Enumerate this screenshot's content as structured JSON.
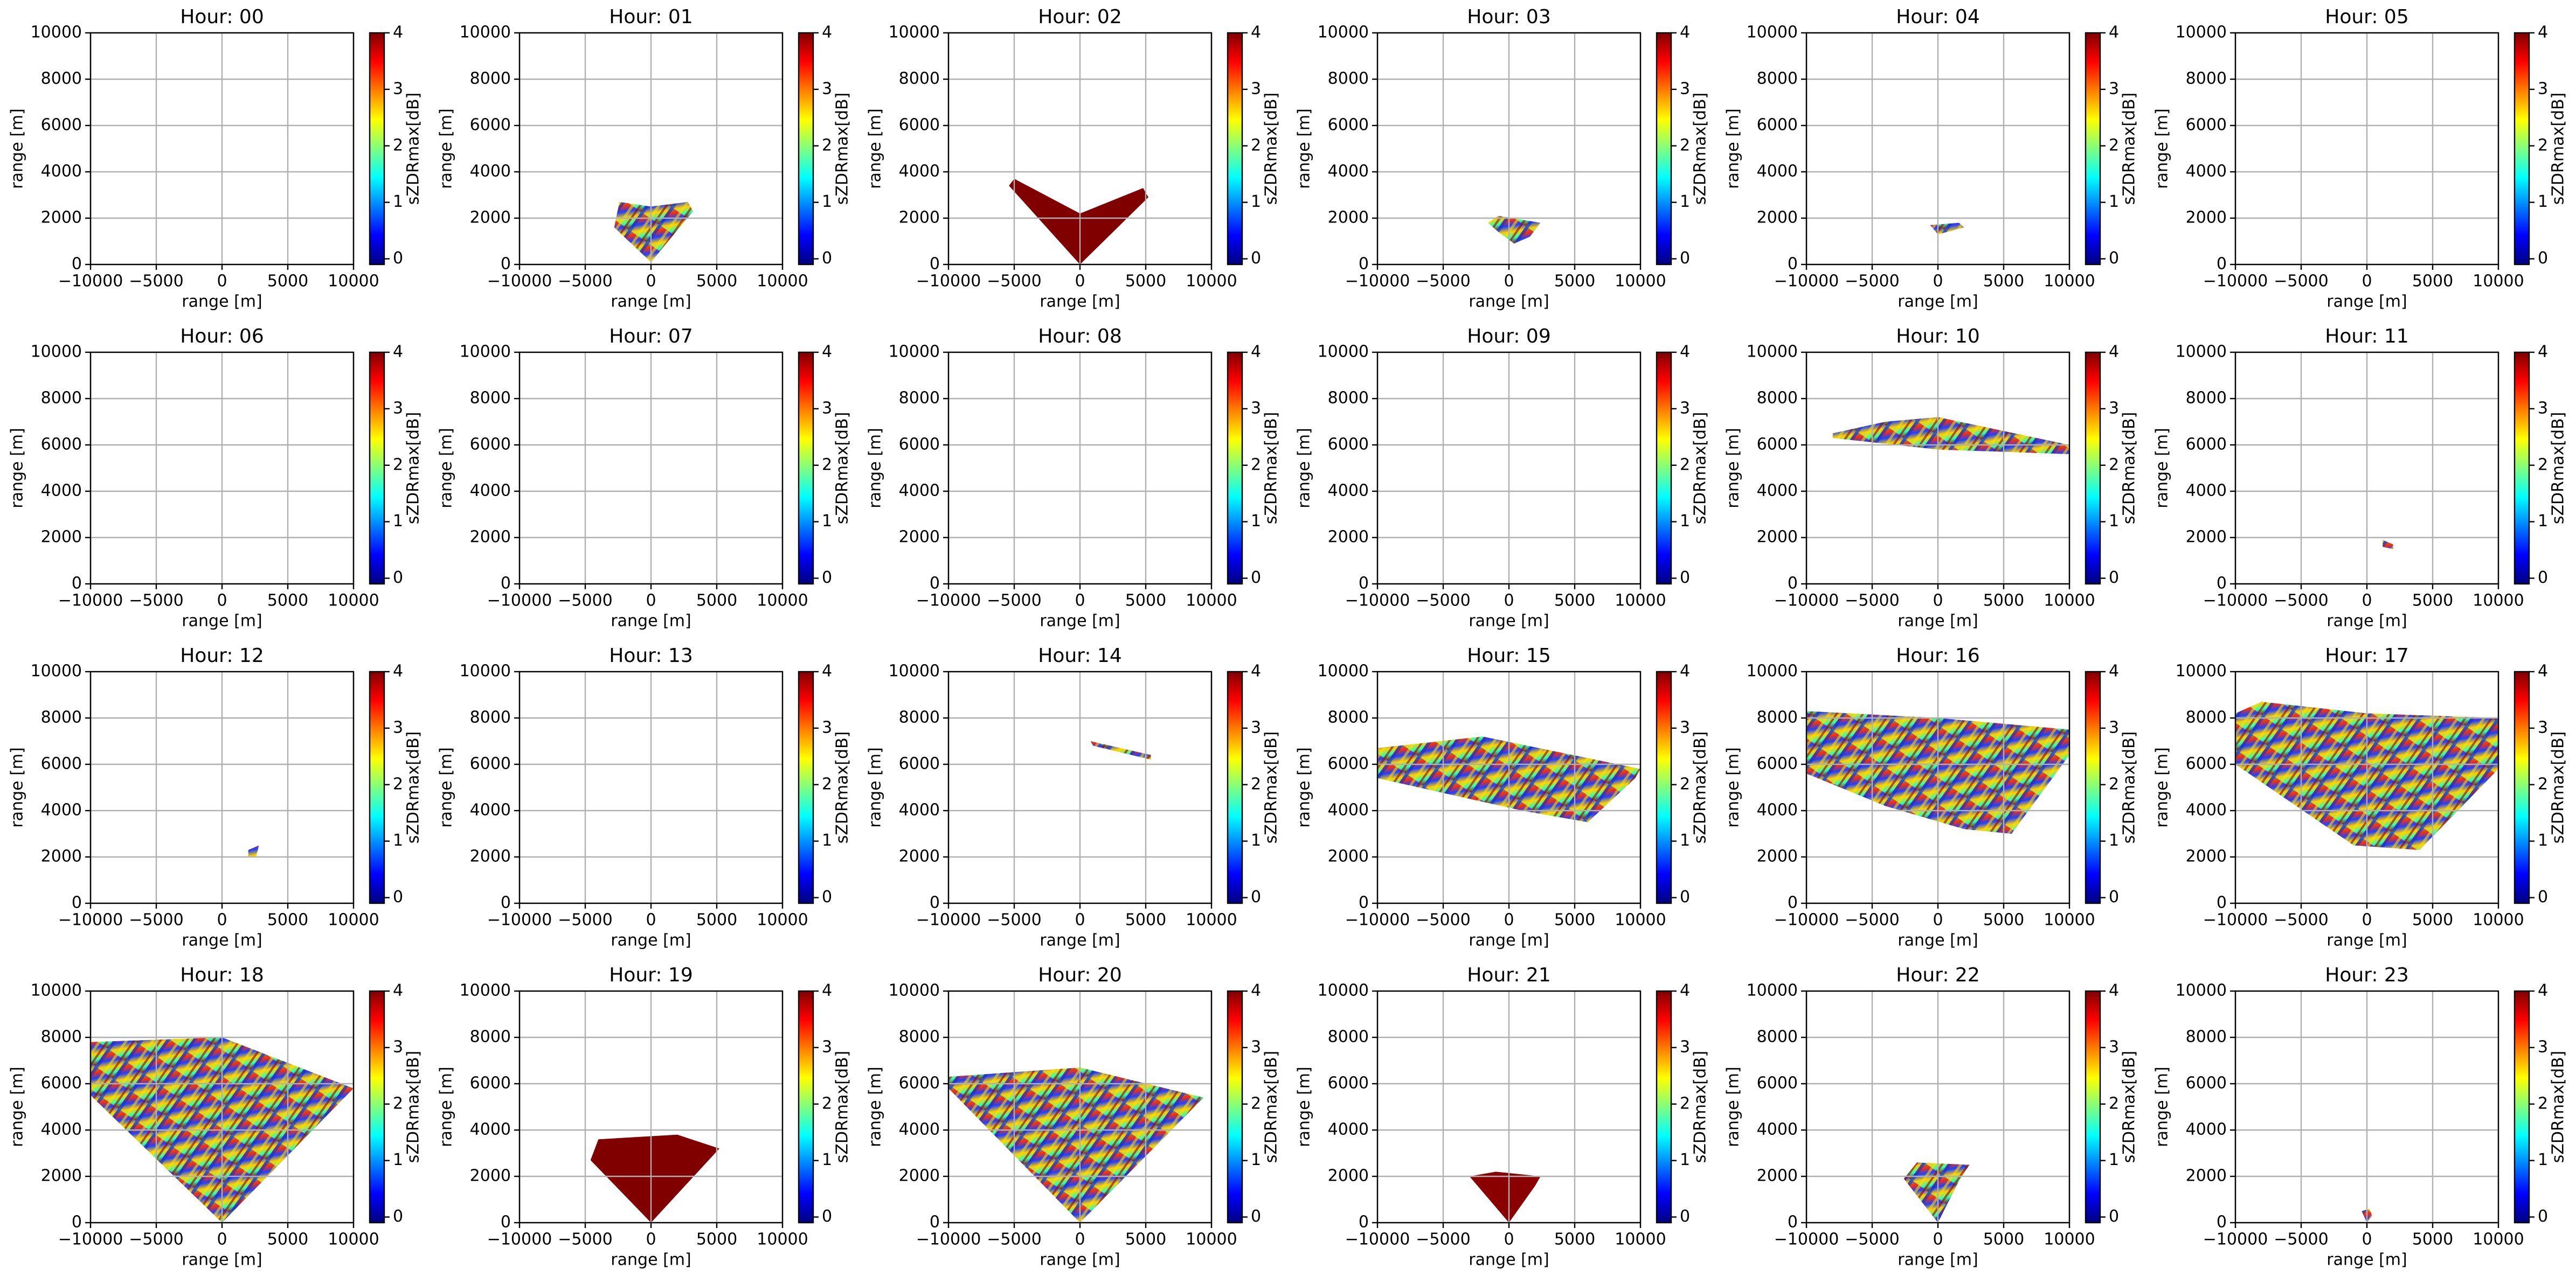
{
  "chart_data": [
    {
      "type": "heatmap",
      "title": "Hour: 00",
      "xlabel": "range [m]",
      "ylabel": "range [m]",
      "xlim": [
        -10000,
        10000
      ],
      "ylim": [
        0,
        10000
      ],
      "xticks": [
        {
          "value": -10000,
          "label": "−10000"
        },
        {
          "value": -5000,
          "label": "−5000"
        },
        0,
        5000,
        10000
      ],
      "yticks": [
        0,
        2000,
        4000,
        6000,
        8000,
        10000
      ],
      "grid": true,
      "colorbar": {
        "label": "sZDRmax[dB]",
        "colormap": "jet",
        "lim": [
          -0.1,
          4
        ],
        "ticks": [
          0,
          1,
          2,
          3,
          4
        ]
      }
    },
    {
      "type": "heatmap",
      "title": "Hour: 01",
      "xlabel": "range [m]",
      "ylabel": "range [m]",
      "xlim": [
        -10000,
        10000
      ],
      "ylim": [
        0,
        10000
      ],
      "xticks": [
        {
          "value": -10000,
          "label": "−10000"
        },
        {
          "value": -5000,
          "label": "−5000"
        },
        0,
        5000,
        10000
      ],
      "yticks": [
        0,
        2000,
        4000,
        6000,
        8000,
        10000
      ],
      "grid": true,
      "colorbar": {
        "label": "sZDRmax[dB]",
        "colormap": "jet",
        "lim": [
          -0.1,
          4
        ],
        "ticks": [
          0,
          1,
          2,
          3,
          4
        ]
      }
    },
    {
      "type": "heatmap",
      "title": "Hour: 02",
      "xlabel": "range [m]",
      "ylabel": "range [m]",
      "xlim": [
        -10000,
        10000
      ],
      "ylim": [
        0,
        10000
      ],
      "xticks": [
        {
          "value": -10000,
          "label": "−10000"
        },
        {
          "value": -5000,
          "label": "−5000"
        },
        0,
        5000,
        10000
      ],
      "yticks": [
        0,
        2000,
        4000,
        6000,
        8000,
        10000
      ],
      "grid": true,
      "colorbar": {
        "label": "sZDRmax[dB]",
        "colormap": "jet",
        "lim": [
          -0.1,
          4
        ],
        "ticks": [
          0,
          1,
          2,
          3,
          4
        ]
      }
    },
    {
      "type": "heatmap",
      "title": "Hour: 03",
      "xlabel": "range [m]",
      "ylabel": "range [m]",
      "xlim": [
        -10000,
        10000
      ],
      "ylim": [
        0,
        10000
      ],
      "xticks": [
        {
          "value": -10000,
          "label": "−10000"
        },
        {
          "value": -5000,
          "label": "−5000"
        },
        0,
        5000,
        10000
      ],
      "yticks": [
        0,
        2000,
        4000,
        6000,
        8000,
        10000
      ],
      "grid": true,
      "colorbar": {
        "label": "sZDRmax[dB]",
        "colormap": "jet",
        "lim": [
          -0.1,
          4
        ],
        "ticks": [
          0,
          1,
          2,
          3,
          4
        ]
      }
    },
    {
      "type": "heatmap",
      "title": "Hour: 04",
      "xlabel": "range [m]",
      "ylabel": "range [m]",
      "xlim": [
        -10000,
        10000
      ],
      "ylim": [
        0,
        10000
      ],
      "xticks": [
        {
          "value": -10000,
          "label": "−10000"
        },
        {
          "value": -5000,
          "label": "−5000"
        },
        0,
        5000,
        10000
      ],
      "yticks": [
        0,
        2000,
        4000,
        6000,
        8000,
        10000
      ],
      "grid": true,
      "colorbar": {
        "label": "sZDRmax[dB]",
        "colormap": "jet",
        "lim": [
          -0.1,
          4
        ],
        "ticks": [
          0,
          1,
          2,
          3,
          4
        ]
      }
    },
    {
      "type": "heatmap",
      "title": "Hour: 05",
      "xlabel": "range [m]",
      "ylabel": "range [m]",
      "xlim": [
        -10000,
        10000
      ],
      "ylim": [
        0,
        10000
      ],
      "xticks": [
        {
          "value": -10000,
          "label": "−10000"
        },
        {
          "value": -5000,
          "label": "−5000"
        },
        0,
        5000,
        10000
      ],
      "yticks": [
        0,
        2000,
        4000,
        6000,
        8000,
        10000
      ],
      "grid": true,
      "colorbar": {
        "label": "sZDRmax[dB]",
        "colormap": "jet",
        "lim": [
          -0.1,
          4
        ],
        "ticks": [
          0,
          1,
          2,
          3,
          4
        ]
      }
    },
    {
      "type": "heatmap",
      "title": "Hour: 06",
      "xlabel": "range [m]",
      "ylabel": "range [m]",
      "xlim": [
        -10000,
        10000
      ],
      "ylim": [
        0,
        10000
      ],
      "xticks": [
        {
          "value": -10000,
          "label": "−10000"
        },
        {
          "value": -5000,
          "label": "−5000"
        },
        0,
        5000,
        10000
      ],
      "yticks": [
        0,
        2000,
        4000,
        6000,
        8000,
        10000
      ],
      "grid": true,
      "colorbar": {
        "label": "sZDRmax[dB]",
        "colormap": "jet",
        "lim": [
          -0.1,
          4
        ],
        "ticks": [
          0,
          1,
          2,
          3,
          4
        ]
      }
    },
    {
      "type": "heatmap",
      "title": "Hour: 07",
      "xlabel": "range [m]",
      "ylabel": "range [m]",
      "xlim": [
        -10000,
        10000
      ],
      "ylim": [
        0,
        10000
      ],
      "xticks": [
        {
          "value": -10000,
          "label": "−10000"
        },
        {
          "value": -5000,
          "label": "−5000"
        },
        0,
        5000,
        10000
      ],
      "yticks": [
        0,
        2000,
        4000,
        6000,
        8000,
        10000
      ],
      "grid": true,
      "colorbar": {
        "label": "sZDRmax[dB]",
        "colormap": "jet",
        "lim": [
          -0.1,
          4
        ],
        "ticks": [
          0,
          1,
          2,
          3,
          4
        ]
      }
    },
    {
      "type": "heatmap",
      "title": "Hour: 08",
      "xlabel": "range [m]",
      "ylabel": "range [m]",
      "xlim": [
        -10000,
        10000
      ],
      "ylim": [
        0,
        10000
      ],
      "xticks": [
        {
          "value": -10000,
          "label": "−10000"
        },
        {
          "value": -5000,
          "label": "−5000"
        },
        0,
        5000,
        10000
      ],
      "yticks": [
        0,
        2000,
        4000,
        6000,
        8000,
        10000
      ],
      "grid": true,
      "colorbar": {
        "label": "sZDRmax[dB]",
        "colormap": "jet",
        "lim": [
          -0.1,
          4
        ],
        "ticks": [
          0,
          1,
          2,
          3,
          4
        ]
      }
    },
    {
      "type": "heatmap",
      "title": "Hour: 09",
      "xlabel": "range [m]",
      "ylabel": "range [m]",
      "xlim": [
        -10000,
        10000
      ],
      "ylim": [
        0,
        10000
      ],
      "xticks": [
        {
          "value": -10000,
          "label": "−10000"
        },
        {
          "value": -5000,
          "label": "−5000"
        },
        0,
        5000,
        10000
      ],
      "yticks": [
        0,
        2000,
        4000,
        6000,
        8000,
        10000
      ],
      "grid": true,
      "colorbar": {
        "label": "sZDRmax[dB]",
        "colormap": "jet",
        "lim": [
          -0.1,
          4
        ],
        "ticks": [
          0,
          1,
          2,
          3,
          4
        ]
      }
    },
    {
      "type": "heatmap",
      "title": "Hour: 10",
      "xlabel": "range [m]",
      "ylabel": "range [m]",
      "xlim": [
        -10000,
        10000
      ],
      "ylim": [
        0,
        10000
      ],
      "xticks": [
        {
          "value": -10000,
          "label": "−10000"
        },
        {
          "value": -5000,
          "label": "−5000"
        },
        0,
        5000,
        10000
      ],
      "yticks": [
        0,
        2000,
        4000,
        6000,
        8000,
        10000
      ],
      "grid": true,
      "colorbar": {
        "label": "sZDRmax[dB]",
        "colormap": "jet",
        "lim": [
          -0.1,
          4
        ],
        "ticks": [
          0,
          1,
          2,
          3,
          4
        ]
      }
    },
    {
      "type": "heatmap",
      "title": "Hour: 11",
      "xlabel": "range [m]",
      "ylabel": "range [m]",
      "xlim": [
        -10000,
        10000
      ],
      "ylim": [
        0,
        10000
      ],
      "xticks": [
        {
          "value": -10000,
          "label": "−10000"
        },
        {
          "value": -5000,
          "label": "−5000"
        },
        0,
        5000,
        10000
      ],
      "yticks": [
        0,
        2000,
        4000,
        6000,
        8000,
        10000
      ],
      "grid": true,
      "colorbar": {
        "label": "sZDRmax[dB]",
        "colormap": "jet",
        "lim": [
          -0.1,
          4
        ],
        "ticks": [
          0,
          1,
          2,
          3,
          4
        ]
      }
    },
    {
      "type": "heatmap",
      "title": "Hour: 12",
      "xlabel": "range [m]",
      "ylabel": "range [m]",
      "xlim": [
        -10000,
        10000
      ],
      "ylim": [
        0,
        10000
      ],
      "xticks": [
        {
          "value": -10000,
          "label": "−10000"
        },
        {
          "value": -5000,
          "label": "−5000"
        },
        0,
        5000,
        10000
      ],
      "yticks": [
        0,
        2000,
        4000,
        6000,
        8000,
        10000
      ],
      "grid": true,
      "colorbar": {
        "label": "sZDRmax[dB]",
        "colormap": "jet",
        "lim": [
          -0.1,
          4
        ],
        "ticks": [
          0,
          1,
          2,
          3,
          4
        ]
      }
    },
    {
      "type": "heatmap",
      "title": "Hour: 13",
      "xlabel": "range [m]",
      "ylabel": "range [m]",
      "xlim": [
        -10000,
        10000
      ],
      "ylim": [
        0,
        10000
      ],
      "xticks": [
        {
          "value": -10000,
          "label": "−10000"
        },
        {
          "value": -5000,
          "label": "−5000"
        },
        0,
        5000,
        10000
      ],
      "yticks": [
        0,
        2000,
        4000,
        6000,
        8000,
        10000
      ],
      "grid": true,
      "colorbar": {
        "label": "sZDRmax[dB]",
        "colormap": "jet",
        "lim": [
          -0.1,
          4
        ],
        "ticks": [
          0,
          1,
          2,
          3,
          4
        ]
      }
    },
    {
      "type": "heatmap",
      "title": "Hour: 14",
      "xlabel": "range [m]",
      "ylabel": "range [m]",
      "xlim": [
        -10000,
        10000
      ],
      "ylim": [
        0,
        10000
      ],
      "xticks": [
        {
          "value": -10000,
          "label": "−10000"
        },
        {
          "value": -5000,
          "label": "−5000"
        },
        0,
        5000,
        10000
      ],
      "yticks": [
        0,
        2000,
        4000,
        6000,
        8000,
        10000
      ],
      "grid": true,
      "colorbar": {
        "label": "sZDRmax[dB]",
        "colormap": "jet",
        "lim": [
          -0.1,
          4
        ],
        "ticks": [
          0,
          1,
          2,
          3,
          4
        ]
      }
    },
    {
      "type": "heatmap",
      "title": "Hour: 15",
      "xlabel": "range [m]",
      "ylabel": "range [m]",
      "xlim": [
        -10000,
        10000
      ],
      "ylim": [
        0,
        10000
      ],
      "xticks": [
        {
          "value": -10000,
          "label": "−10000"
        },
        {
          "value": -5000,
          "label": "−5000"
        },
        0,
        5000,
        10000
      ],
      "yticks": [
        0,
        2000,
        4000,
        6000,
        8000,
        10000
      ],
      "grid": true,
      "colorbar": {
        "label": "sZDRmax[dB]",
        "colormap": "jet",
        "lim": [
          -0.1,
          4
        ],
        "ticks": [
          0,
          1,
          2,
          3,
          4
        ]
      }
    },
    {
      "type": "heatmap",
      "title": "Hour: 16",
      "xlabel": "range [m]",
      "ylabel": "range [m]",
      "xlim": [
        -10000,
        10000
      ],
      "ylim": [
        0,
        10000
      ],
      "xticks": [
        {
          "value": -10000,
          "label": "−10000"
        },
        {
          "value": -5000,
          "label": "−5000"
        },
        0,
        5000,
        10000
      ],
      "yticks": [
        0,
        2000,
        4000,
        6000,
        8000,
        10000
      ],
      "grid": true,
      "colorbar": {
        "label": "sZDRmax[dB]",
        "colormap": "jet",
        "lim": [
          -0.1,
          4
        ],
        "ticks": [
          0,
          1,
          2,
          3,
          4
        ]
      }
    },
    {
      "type": "heatmap",
      "title": "Hour: 17",
      "xlabel": "range [m]",
      "ylabel": "range [m]",
      "xlim": [
        -10000,
        10000
      ],
      "ylim": [
        0,
        10000
      ],
      "xticks": [
        {
          "value": -10000,
          "label": "−10000"
        },
        {
          "value": -5000,
          "label": "−5000"
        },
        0,
        5000,
        10000
      ],
      "yticks": [
        0,
        2000,
        4000,
        6000,
        8000,
        10000
      ],
      "grid": true,
      "colorbar": {
        "label": "sZDRmax[dB]",
        "colormap": "jet",
        "lim": [
          -0.1,
          4
        ],
        "ticks": [
          0,
          1,
          2,
          3,
          4
        ]
      }
    },
    {
      "type": "heatmap",
      "title": "Hour: 18",
      "xlabel": "range [m]",
      "ylabel": "range [m]",
      "xlim": [
        -10000,
        10000
      ],
      "ylim": [
        0,
        10000
      ],
      "xticks": [
        {
          "value": -10000,
          "label": "−10000"
        },
        {
          "value": -5000,
          "label": "−5000"
        },
        0,
        5000,
        10000
      ],
      "yticks": [
        0,
        2000,
        4000,
        6000,
        8000,
        10000
      ],
      "grid": true,
      "colorbar": {
        "label": "sZDRmax[dB]",
        "colormap": "jet",
        "lim": [
          -0.1,
          4
        ],
        "ticks": [
          0,
          1,
          2,
          3,
          4
        ]
      }
    },
    {
      "type": "heatmap",
      "title": "Hour: 19",
      "xlabel": "range [m]",
      "ylabel": "range [m]",
      "xlim": [
        -10000,
        10000
      ],
      "ylim": [
        0,
        10000
      ],
      "xticks": [
        {
          "value": -10000,
          "label": "−10000"
        },
        {
          "value": -5000,
          "label": "−5000"
        },
        0,
        5000,
        10000
      ],
      "yticks": [
        0,
        2000,
        4000,
        6000,
        8000,
        10000
      ],
      "grid": true,
      "colorbar": {
        "label": "sZDRmax[dB]",
        "colormap": "jet",
        "lim": [
          -0.1,
          4
        ],
        "ticks": [
          0,
          1,
          2,
          3,
          4
        ]
      }
    },
    {
      "type": "heatmap",
      "title": "Hour: 20",
      "xlabel": "range [m]",
      "ylabel": "range [m]",
      "xlim": [
        -10000,
        10000
      ],
      "ylim": [
        0,
        10000
      ],
      "xticks": [
        {
          "value": -10000,
          "label": "−10000"
        },
        {
          "value": -5000,
          "label": "−5000"
        },
        0,
        5000,
        10000
      ],
      "yticks": [
        0,
        2000,
        4000,
        6000,
        8000,
        10000
      ],
      "grid": true,
      "colorbar": {
        "label": "sZDRmax[dB]",
        "colormap": "jet",
        "lim": [
          -0.1,
          4
        ],
        "ticks": [
          0,
          1,
          2,
          3,
          4
        ]
      }
    },
    {
      "type": "heatmap",
      "title": "Hour: 21",
      "xlabel": "range [m]",
      "ylabel": "range [m]",
      "xlim": [
        -10000,
        10000
      ],
      "ylim": [
        0,
        10000
      ],
      "xticks": [
        {
          "value": -10000,
          "label": "−10000"
        },
        {
          "value": -5000,
          "label": "−5000"
        },
        0,
        5000,
        10000
      ],
      "yticks": [
        0,
        2000,
        4000,
        6000,
        8000,
        10000
      ],
      "grid": true,
      "colorbar": {
        "label": "sZDRmax[dB]",
        "colormap": "jet",
        "lim": [
          -0.1,
          4
        ],
        "ticks": [
          0,
          1,
          2,
          3,
          4
        ]
      }
    },
    {
      "type": "heatmap",
      "title": "Hour: 22",
      "xlabel": "range [m]",
      "ylabel": "range [m]",
      "xlim": [
        -10000,
        10000
      ],
      "ylim": [
        0,
        10000
      ],
      "xticks": [
        {
          "value": -10000,
          "label": "−10000"
        },
        {
          "value": -5000,
          "label": "−5000"
        },
        0,
        5000,
        10000
      ],
      "yticks": [
        0,
        2000,
        4000,
        6000,
        8000,
        10000
      ],
      "grid": true,
      "colorbar": {
        "label": "sZDRmax[dB]",
        "colormap": "jet",
        "lim": [
          -0.1,
          4
        ],
        "ticks": [
          0,
          1,
          2,
          3,
          4
        ]
      }
    },
    {
      "type": "heatmap",
      "title": "Hour: 23",
      "xlabel": "range [m]",
      "ylabel": "range [m]",
      "xlim": [
        -10000,
        10000
      ],
      "ylim": [
        0,
        10000
      ],
      "xticks": [
        {
          "value": -10000,
          "label": "−10000"
        },
        {
          "value": -5000,
          "label": "−5000"
        },
        0,
        5000,
        10000
      ],
      "yticks": [
        0,
        2000,
        4000,
        6000,
        8000,
        10000
      ],
      "grid": true,
      "colorbar": {
        "label": "sZDRmax[dB]",
        "colormap": "jet",
        "lim": [
          -0.1,
          4
        ],
        "ticks": [
          0,
          1,
          2,
          3,
          4
        ]
      }
    }
  ]
}
